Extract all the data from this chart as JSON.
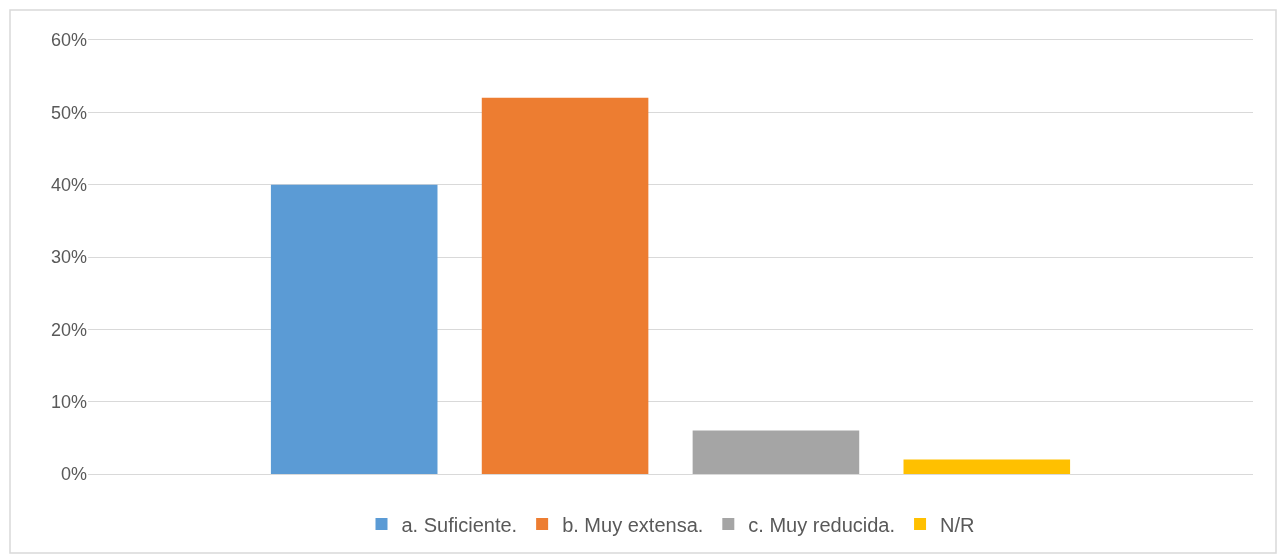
{
  "chart_data": {
    "type": "bar",
    "categories": [
      null
    ],
    "series": [
      {
        "name": "a. Suficiente.",
        "color": "#5b9bd5",
        "values": [
          40
        ]
      },
      {
        "name": "b. Muy extensa.",
        "color": "#ed7d31",
        "values": [
          52
        ]
      },
      {
        "name": "c. Muy reducida.",
        "color": "#a5a5a5",
        "values": [
          6
        ]
      },
      {
        "name": "N/R",
        "color": "#ffc000",
        "values": [
          2
        ]
      }
    ],
    "ylim": [
      0,
      60
    ],
    "yticks": [
      {
        "value": 0,
        "label": "0%"
      },
      {
        "value": 10,
        "label": "10%"
      },
      {
        "value": 20,
        "label": "20%"
      },
      {
        "value": 30,
        "label": "30%"
      },
      {
        "value": 40,
        "label": "40%"
      },
      {
        "value": 50,
        "label": "50%"
      },
      {
        "value": 60,
        "label": "60%"
      }
    ],
    "grid": "y",
    "legend": "bottom"
  }
}
